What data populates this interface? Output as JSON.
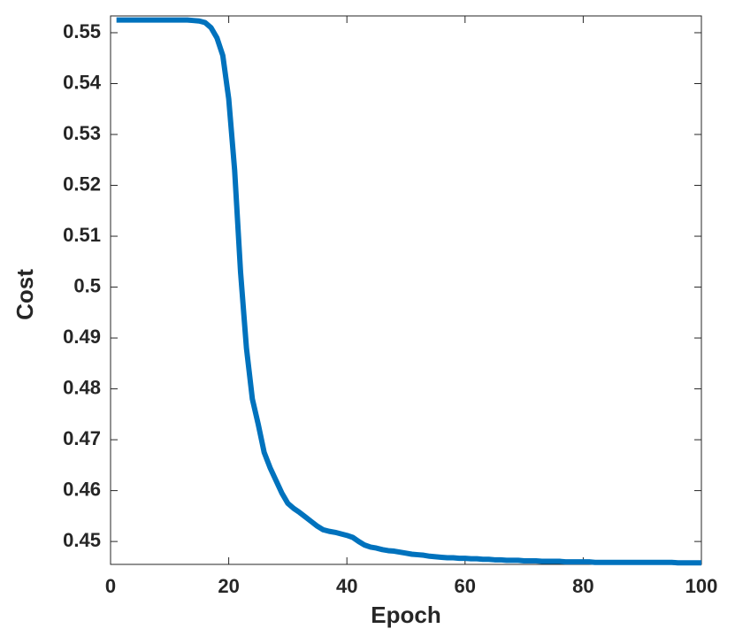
{
  "chart_data": {
    "type": "line",
    "x_label": "Epoch",
    "y_label": "Cost",
    "color": "#0072bd",
    "x": [
      1,
      2,
      3,
      4,
      5,
      6,
      7,
      8,
      9,
      10,
      11,
      12,
      13,
      14,
      15,
      16,
      17,
      18,
      19,
      20,
      21,
      22,
      23,
      24,
      25,
      26,
      27,
      28,
      29,
      30,
      31,
      32,
      33,
      34,
      35,
      36,
      37,
      38,
      39,
      40,
      41,
      42,
      43,
      44,
      45,
      46,
      47,
      48,
      49,
      50,
      51,
      52,
      53,
      54,
      55,
      56,
      57,
      58,
      59,
      60,
      61,
      62,
      63,
      64,
      65,
      66,
      67,
      68,
      69,
      70,
      71,
      72,
      73,
      74,
      75,
      76,
      77,
      78,
      79,
      80,
      81,
      82,
      83,
      84,
      85,
      86,
      87,
      88,
      89,
      90,
      91,
      92,
      93,
      94,
      95,
      96,
      97,
      98,
      99,
      100
    ],
    "values": [
      0.5525,
      0.5525,
      0.5525,
      0.5525,
      0.5525,
      0.5525,
      0.5525,
      0.5525,
      0.5525,
      0.5525,
      0.5525,
      0.5525,
      0.5525,
      0.5524,
      0.5523,
      0.552,
      0.551,
      0.549,
      0.5455,
      0.537,
      0.523,
      0.503,
      0.488,
      0.478,
      0.473,
      0.4675,
      0.4645,
      0.462,
      0.4595,
      0.4575,
      0.4565,
      0.4557,
      0.4548,
      0.4539,
      0.453,
      0.4523,
      0.452,
      0.4518,
      0.4515,
      0.4512,
      0.4508,
      0.45,
      0.4493,
      0.4489,
      0.4487,
      0.4484,
      0.4482,
      0.4481,
      0.4479,
      0.4477,
      0.4475,
      0.4474,
      0.4473,
      0.4471,
      0.447,
      0.4469,
      0.4468,
      0.4468,
      0.4467,
      0.4467,
      0.4466,
      0.4466,
      0.4465,
      0.4465,
      0.4464,
      0.4464,
      0.4463,
      0.4463,
      0.4463,
      0.4462,
      0.4462,
      0.4462,
      0.4461,
      0.4461,
      0.4461,
      0.4461,
      0.446,
      0.446,
      0.446,
      0.446,
      0.446,
      0.4459,
      0.4459,
      0.4459,
      0.4459,
      0.4459,
      0.4459,
      0.4459,
      0.4459,
      0.4459,
      0.4459,
      0.4459,
      0.4459,
      0.4459,
      0.4459,
      0.4458,
      0.4458,
      0.4458,
      0.4458,
      0.4458
    ],
    "xlim": [
      0,
      100
    ],
    "xticks": [
      0,
      20,
      40,
      60,
      80,
      100
    ],
    "ylim": [
      0.4455,
      0.5533
    ],
    "yticks": [
      0.45,
      0.46,
      0.47,
      0.48,
      0.49,
      0.5,
      0.51,
      0.52,
      0.53,
      0.54,
      0.55
    ]
  }
}
